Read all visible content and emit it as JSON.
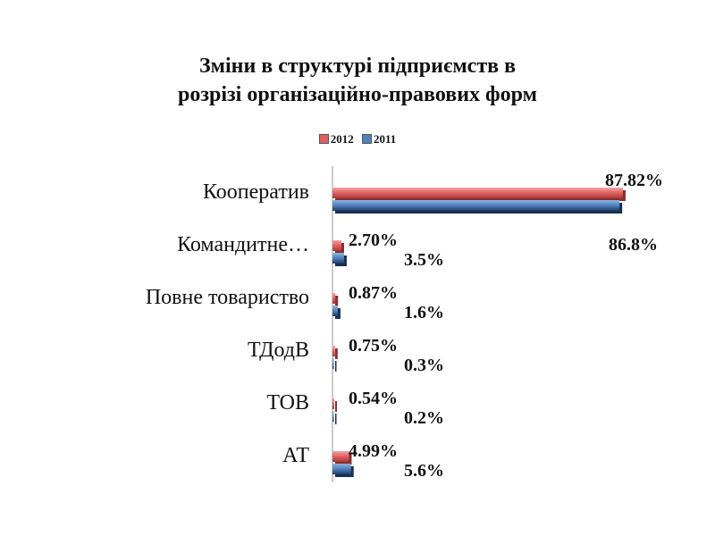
{
  "chart_data": {
    "type": "bar",
    "orientation": "horizontal",
    "title_lines": [
      "Зміни в структурі  підприємств в",
      "розрізі організаційно-правових форм"
    ],
    "categories": [
      "Кооператив",
      "Командитне…",
      "Повне товариство",
      "ТДодВ",
      "ТОВ",
      "АТ"
    ],
    "series": [
      {
        "name": "2012",
        "color": "#e06060",
        "values": [
          87.82,
          2.7,
          0.87,
          0.75,
          0.54,
          4.99
        ],
        "labels": [
          "87.82%",
          "2.70%",
          "0.87%",
          "0.75%",
          "0.54%",
          "4.99%"
        ]
      },
      {
        "name": "2011",
        "color": "#4f81bd",
        "values": [
          86.8,
          3.5,
          1.6,
          0.3,
          0.2,
          5.6
        ],
        "labels": [
          "86.8%",
          "3.5%",
          "1.6%",
          "0.3%",
          "0.2%",
          "5.6%"
        ]
      }
    ],
    "xlim": [
      0,
      90
    ],
    "legend_position": "top-center",
    "grid": false
  }
}
